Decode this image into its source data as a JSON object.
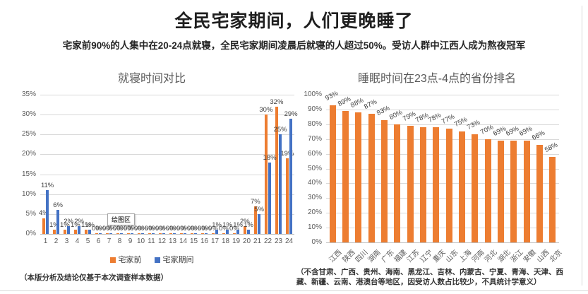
{
  "header": {
    "title": "全民宅家期间，人们更晚睡了",
    "subtitle": "宅家前90%的人集中在20-24点就寝，全民宅家期间凌晨后就寝的人超过50%。受访人群中江西人成为熬夜冠军"
  },
  "tooltip": {
    "label": "绘图区"
  },
  "footnotes": {
    "left": "（本版分析及结论仅基于本次调查样本数据）",
    "right": "（不含甘肃、广西、贵州、海南、黑龙江、吉林、内蒙古、宁夏、青海、天津、西藏、新疆、云南、港澳台等地区，因受访人数占比较少，不具统计学意义）"
  },
  "colors": {
    "orange": "#ED7D31",
    "blue": "#4472C4",
    "grid": "#D9D9D9",
    "axis_text": "#595959",
    "chart_title": "#595959"
  },
  "chart_data": [
    {
      "type": "bar",
      "title": "就寝时间对比",
      "categories": [
        "1",
        "2",
        "3",
        "4",
        "5",
        "6",
        "7",
        "8",
        "9",
        "10",
        "11",
        "12",
        "13",
        "14",
        "15",
        "16",
        "17",
        "18",
        "19",
        "20",
        "21",
        "22",
        "23",
        "24"
      ],
      "series": [
        {
          "name": "宅家前",
          "color": "#ED7D31",
          "values": [
            4,
            1,
            1,
            1,
            1,
            0,
            0,
            0,
            0,
            0,
            0,
            0,
            0,
            0,
            0,
            0,
            0,
            0,
            0,
            2,
            7,
            30,
            32,
            19
          ]
        },
        {
          "name": "宅家期间",
          "color": "#4472C4",
          "values": [
            11,
            6,
            2,
            2,
            1,
            0,
            0,
            0,
            0,
            0,
            0,
            0,
            0,
            0,
            0,
            0,
            1,
            1,
            1,
            1,
            5,
            18,
            25,
            29
          ]
        }
      ],
      "ylim": [
        0,
        35
      ],
      "ytick_step": 5,
      "yticks": [
        "0%",
        "5%",
        "10%",
        "15%",
        "20%",
        "25%",
        "30%",
        "35%"
      ],
      "grid": true,
      "data_labels": true,
      "legend_position": "bottom"
    },
    {
      "type": "bar",
      "title": "睡眠时间在23点-4点的省份排名",
      "categories": [
        "江西",
        "陕西",
        "四川",
        "湖南",
        "广东",
        "福建",
        "江苏",
        "辽宁",
        "重庆",
        "山东",
        "上海",
        "河南",
        "河北",
        "湖北",
        "浙江",
        "安徽",
        "山西",
        "北京"
      ],
      "color": "#ED7D31",
      "values": [
        93,
        89,
        88,
        87,
        83,
        80,
        79,
        78,
        78,
        77,
        75,
        73,
        70,
        69,
        69,
        69,
        66,
        58
      ],
      "ylim": [
        0,
        100
      ],
      "ytick_step": 10,
      "yticks": [
        "0%",
        "10%",
        "20%",
        "30%",
        "40%",
        "50%",
        "60%",
        "70%",
        "80%",
        "90%",
        "100%"
      ],
      "grid": true,
      "data_labels": true,
      "xlabel_rotation": -45,
      "legend_position": "none"
    }
  ]
}
